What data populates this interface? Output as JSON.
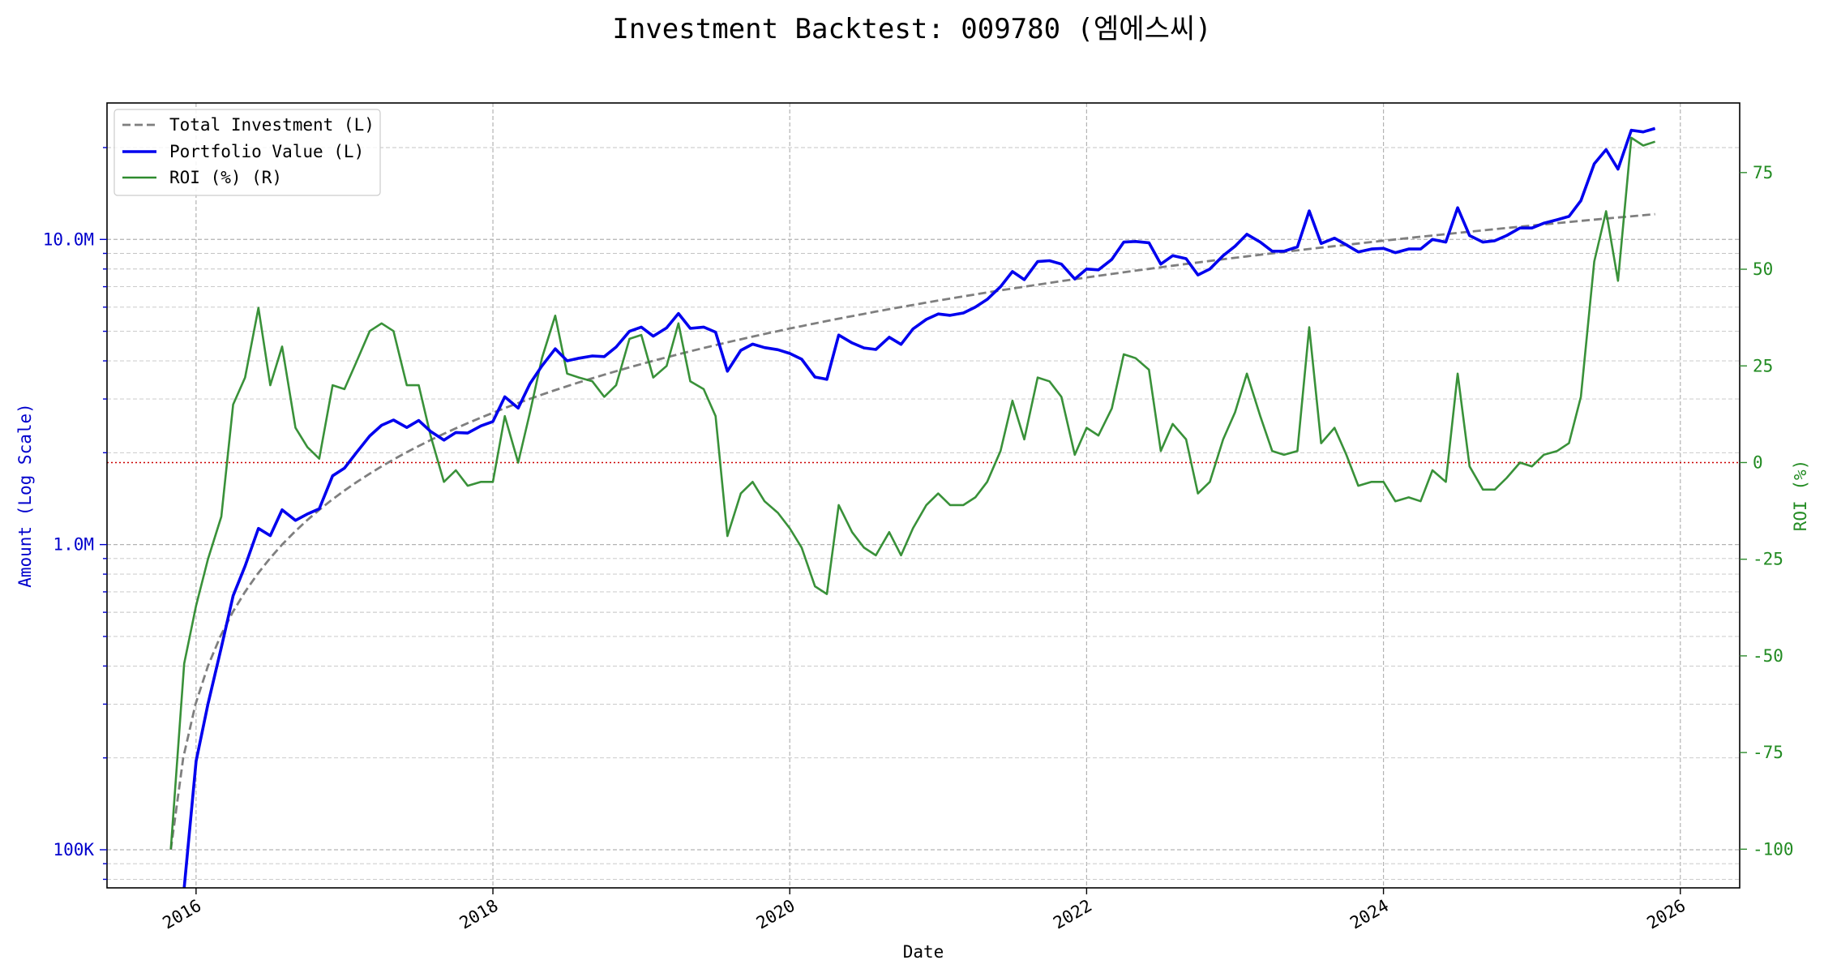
{
  "colors": {
    "investment": "#7f7f7f",
    "portfolio": "#0000ee",
    "roi": "#2e8b2e",
    "left_axis": "#0000cc",
    "right_axis": "#228b22",
    "zero_line": "#cc0000"
  },
  "chart_data": {
    "type": "line",
    "title": "Investment Backtest: 009780 (엠에스씨)",
    "xlabel": "Date",
    "ylabel_left": "Amount (Log Scale)",
    "ylabel_right": "ROI (%)",
    "x_ticks": [
      "2016",
      "2018",
      "2020",
      "2022",
      "2024",
      "2026"
    ],
    "x_range": [
      2015.4,
      2026.4
    ],
    "y_left": {
      "scale": "log",
      "range": [
        75000,
        28000000
      ],
      "ticks": [
        100000,
        1000000,
        10000000
      ],
      "tick_labels": [
        "100K",
        "1.0M",
        "10.0M"
      ]
    },
    "y_right": {
      "scale": "linear",
      "range": [
        -110,
        93
      ],
      "ticks": [
        -100,
        -75,
        -50,
        -25,
        0,
        25,
        50,
        75
      ],
      "tick_labels": [
        "-100",
        "-75",
        "-50",
        "-25",
        "0",
        "25",
        "50",
        "75"
      ]
    },
    "grid": true,
    "legend_position": "top-left",
    "zero_reference_line": 0,
    "series": [
      {
        "name": "Total Investment (L)",
        "axis": "left",
        "style": "dashed",
        "monthly_contribution": 100000,
        "start": 2015.83,
        "end": 2025.83
      },
      {
        "name": "Portfolio Value (L)",
        "axis": "left",
        "style": "solid",
        "points": [
          [
            2015.92,
            60000
          ],
          [
            2016.0,
            195000
          ],
          [
            2016.08,
            300000
          ],
          [
            2016.17,
            460000
          ],
          [
            2016.25,
            680000
          ],
          [
            2016.33,
            850000
          ],
          [
            2016.42,
            1130000
          ],
          [
            2016.5,
            1070000
          ],
          [
            2016.58,
            1300000
          ],
          [
            2016.67,
            1200000
          ],
          [
            2016.75,
            1260000
          ],
          [
            2016.83,
            1310000
          ],
          [
            2016.92,
            1680000
          ],
          [
            2017.0,
            1780000
          ],
          [
            2017.08,
            2000000
          ],
          [
            2017.17,
            2270000
          ],
          [
            2017.25,
            2460000
          ],
          [
            2017.33,
            2560000
          ],
          [
            2017.42,
            2420000
          ],
          [
            2017.5,
            2550000
          ],
          [
            2017.58,
            2350000
          ],
          [
            2017.67,
            2200000
          ],
          [
            2017.75,
            2330000
          ],
          [
            2017.83,
            2320000
          ],
          [
            2017.92,
            2450000
          ],
          [
            2018.0,
            2530000
          ],
          [
            2018.08,
            3050000
          ],
          [
            2018.17,
            2800000
          ],
          [
            2018.25,
            3370000
          ],
          [
            2018.33,
            3850000
          ],
          [
            2018.42,
            4380000
          ],
          [
            2018.5,
            4000000
          ],
          [
            2018.58,
            4080000
          ],
          [
            2018.67,
            4150000
          ],
          [
            2018.75,
            4130000
          ],
          [
            2018.83,
            4440000
          ],
          [
            2018.92,
            5000000
          ],
          [
            2019.0,
            5160000
          ],
          [
            2019.08,
            4820000
          ],
          [
            2019.17,
            5130000
          ],
          [
            2019.25,
            5720000
          ],
          [
            2019.33,
            5110000
          ],
          [
            2019.42,
            5160000
          ],
          [
            2019.5,
            4970000
          ],
          [
            2019.58,
            3700000
          ],
          [
            2019.67,
            4330000
          ],
          [
            2019.75,
            4540000
          ],
          [
            2019.83,
            4420000
          ],
          [
            2019.92,
            4350000
          ],
          [
            2020.0,
            4230000
          ],
          [
            2020.08,
            4050000
          ],
          [
            2020.17,
            3540000
          ],
          [
            2020.25,
            3480000
          ],
          [
            2020.33,
            4860000
          ],
          [
            2020.42,
            4580000
          ],
          [
            2020.5,
            4410000
          ],
          [
            2020.58,
            4360000
          ],
          [
            2020.67,
            4780000
          ],
          [
            2020.75,
            4530000
          ],
          [
            2020.83,
            5090000
          ],
          [
            2020.92,
            5470000
          ],
          [
            2021.0,
            5700000
          ],
          [
            2021.08,
            5640000
          ],
          [
            2021.17,
            5740000
          ],
          [
            2021.25,
            6000000
          ],
          [
            2021.33,
            6360000
          ],
          [
            2021.42,
            7000000
          ],
          [
            2021.5,
            7850000
          ],
          [
            2021.58,
            7380000
          ],
          [
            2021.67,
            8460000
          ],
          [
            2021.75,
            8520000
          ],
          [
            2021.83,
            8300000
          ],
          [
            2021.92,
            7420000
          ],
          [
            2022.0,
            8000000
          ],
          [
            2022.08,
            7950000
          ],
          [
            2022.17,
            8600000
          ],
          [
            2022.25,
            9800000
          ],
          [
            2022.33,
            9850000
          ],
          [
            2022.42,
            9750000
          ],
          [
            2022.5,
            8300000
          ],
          [
            2022.58,
            8850000
          ],
          [
            2022.67,
            8650000
          ],
          [
            2022.75,
            7650000
          ],
          [
            2022.83,
            8000000
          ],
          [
            2022.92,
            8850000
          ],
          [
            2023.0,
            9500000
          ],
          [
            2023.08,
            10400000
          ],
          [
            2023.17,
            9800000
          ],
          [
            2023.25,
            9150000
          ],
          [
            2023.33,
            9150000
          ],
          [
            2023.42,
            9450000
          ],
          [
            2023.5,
            12400000
          ],
          [
            2023.58,
            9700000
          ],
          [
            2023.67,
            10100000
          ],
          [
            2023.75,
            9600000
          ],
          [
            2023.83,
            9100000
          ],
          [
            2023.92,
            9300000
          ],
          [
            2024.0,
            9350000
          ],
          [
            2024.08,
            9050000
          ],
          [
            2024.17,
            9300000
          ],
          [
            2024.25,
            9300000
          ],
          [
            2024.33,
            10000000
          ],
          [
            2024.42,
            9800000
          ],
          [
            2024.5,
            12700000
          ],
          [
            2024.58,
            10300000
          ],
          [
            2024.67,
            9800000
          ],
          [
            2024.75,
            9900000
          ],
          [
            2024.83,
            10300000
          ],
          [
            2024.92,
            10900000
          ],
          [
            2025.0,
            10900000
          ],
          [
            2025.08,
            11300000
          ],
          [
            2025.17,
            11600000
          ],
          [
            2025.25,
            11900000
          ],
          [
            2025.33,
            13400000
          ],
          [
            2025.42,
            17700000
          ],
          [
            2025.5,
            19700000
          ],
          [
            2025.58,
            17000000
          ],
          [
            2025.67,
            22800000
          ],
          [
            2025.75,
            22500000
          ],
          [
            2025.83,
            23100000
          ]
        ]
      },
      {
        "name": "ROI (%) (R)",
        "axis": "right",
        "style": "solid",
        "points": [
          [
            2015.83,
            -100
          ],
          [
            2015.92,
            -52
          ],
          [
            2016.0,
            -37
          ],
          [
            2016.08,
            -25
          ],
          [
            2016.17,
            -14
          ],
          [
            2016.25,
            15
          ],
          [
            2016.33,
            22
          ],
          [
            2016.42,
            40
          ],
          [
            2016.5,
            20
          ],
          [
            2016.58,
            30
          ],
          [
            2016.67,
            9
          ],
          [
            2016.75,
            4
          ],
          [
            2016.83,
            1
          ],
          [
            2016.92,
            20
          ],
          [
            2017.0,
            19
          ],
          [
            2017.08,
            26
          ],
          [
            2017.17,
            34
          ],
          [
            2017.25,
            36
          ],
          [
            2017.33,
            34
          ],
          [
            2017.42,
            20
          ],
          [
            2017.5,
            20
          ],
          [
            2017.58,
            7
          ],
          [
            2017.67,
            -5
          ],
          [
            2017.75,
            -2
          ],
          [
            2017.83,
            -6
          ],
          [
            2017.92,
            -5
          ],
          [
            2018.0,
            -5
          ],
          [
            2018.08,
            12
          ],
          [
            2018.17,
            0
          ],
          [
            2018.25,
            13
          ],
          [
            2018.33,
            27
          ],
          [
            2018.42,
            38
          ],
          [
            2018.5,
            23
          ],
          [
            2018.58,
            22
          ],
          [
            2018.67,
            21
          ],
          [
            2018.75,
            17
          ],
          [
            2018.83,
            20
          ],
          [
            2018.92,
            32
          ],
          [
            2019.0,
            33
          ],
          [
            2019.08,
            22
          ],
          [
            2019.17,
            25
          ],
          [
            2019.25,
            36
          ],
          [
            2019.33,
            21
          ],
          [
            2019.42,
            19
          ],
          [
            2019.5,
            12
          ],
          [
            2019.58,
            -19
          ],
          [
            2019.67,
            -8
          ],
          [
            2019.75,
            -5
          ],
          [
            2019.83,
            -10
          ],
          [
            2019.92,
            -13
          ],
          [
            2020.0,
            -17
          ],
          [
            2020.08,
            -22
          ],
          [
            2020.17,
            -32
          ],
          [
            2020.25,
            -34
          ],
          [
            2020.33,
            -11
          ],
          [
            2020.42,
            -18
          ],
          [
            2020.5,
            -22
          ],
          [
            2020.58,
            -24
          ],
          [
            2020.67,
            -18
          ],
          [
            2020.75,
            -24
          ],
          [
            2020.83,
            -17
          ],
          [
            2020.92,
            -11
          ],
          [
            2021.0,
            -8
          ],
          [
            2021.08,
            -11
          ],
          [
            2021.17,
            -11
          ],
          [
            2021.25,
            -9
          ],
          [
            2021.33,
            -5
          ],
          [
            2021.42,
            3
          ],
          [
            2021.5,
            16
          ],
          [
            2021.58,
            6
          ],
          [
            2021.67,
            22
          ],
          [
            2021.75,
            21
          ],
          [
            2021.83,
            17
          ],
          [
            2021.92,
            2
          ],
          [
            2022.0,
            9
          ],
          [
            2022.08,
            7
          ],
          [
            2022.17,
            14
          ],
          [
            2022.25,
            28
          ],
          [
            2022.33,
            27
          ],
          [
            2022.42,
            24
          ],
          [
            2022.5,
            3
          ],
          [
            2022.58,
            10
          ],
          [
            2022.67,
            6
          ],
          [
            2022.75,
            -8
          ],
          [
            2022.83,
            -5
          ],
          [
            2022.92,
            6
          ],
          [
            2023.0,
            13
          ],
          [
            2023.08,
            23
          ],
          [
            2023.17,
            12
          ],
          [
            2023.25,
            3
          ],
          [
            2023.33,
            2
          ],
          [
            2023.42,
            3
          ],
          [
            2023.5,
            35
          ],
          [
            2023.58,
            5
          ],
          [
            2023.67,
            9
          ],
          [
            2023.75,
            2
          ],
          [
            2023.83,
            -6
          ],
          [
            2023.92,
            -5
          ],
          [
            2024.0,
            -5
          ],
          [
            2024.08,
            -10
          ],
          [
            2024.17,
            -9
          ],
          [
            2024.25,
            -10
          ],
          [
            2024.33,
            -2
          ],
          [
            2024.42,
            -5
          ],
          [
            2024.5,
            23
          ],
          [
            2024.58,
            -1
          ],
          [
            2024.67,
            -7
          ],
          [
            2024.75,
            -7
          ],
          [
            2024.83,
            -4
          ],
          [
            2024.92,
            0
          ],
          [
            2025.0,
            -1
          ],
          [
            2025.08,
            2
          ],
          [
            2025.17,
            3
          ],
          [
            2025.25,
            5
          ],
          [
            2025.33,
            17
          ],
          [
            2025.42,
            52
          ],
          [
            2025.5,
            65
          ],
          [
            2025.58,
            47
          ],
          [
            2025.67,
            84
          ],
          [
            2025.75,
            82
          ],
          [
            2025.83,
            83
          ]
        ]
      }
    ]
  }
}
